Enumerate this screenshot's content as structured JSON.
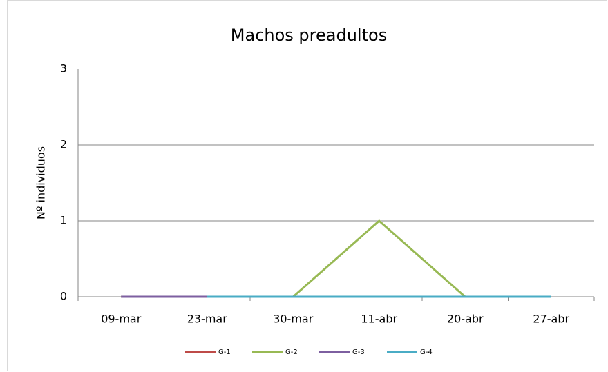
{
  "chart_data": {
    "type": "line",
    "title": "Machos preadultos",
    "y_label": "Nº individuos",
    "categories": [
      "09-mar",
      "23-mar",
      "30-mar",
      "11-abr",
      "20-abr",
      "27-abr"
    ],
    "series": [
      {
        "name": "G-1",
        "color": "#be4b48",
        "values": [
          0,
          0,
          0,
          0,
          0,
          0
        ]
      },
      {
        "name": "G-2",
        "color": "#98b954",
        "values": [
          0,
          0,
          0,
          1,
          0,
          0
        ]
      },
      {
        "name": "G-3",
        "color": "#7d5fa0",
        "values": [
          0,
          0,
          0,
          0,
          0,
          0
        ]
      },
      {
        "name": "G-4",
        "color": "#4aacc5",
        "values": [
          null,
          0,
          0,
          0,
          0,
          0
        ]
      }
    ],
    "ylim": [
      0,
      3
    ],
    "yticks": [
      0,
      1,
      2,
      3
    ],
    "grid": true,
    "legend": "bottom"
  }
}
